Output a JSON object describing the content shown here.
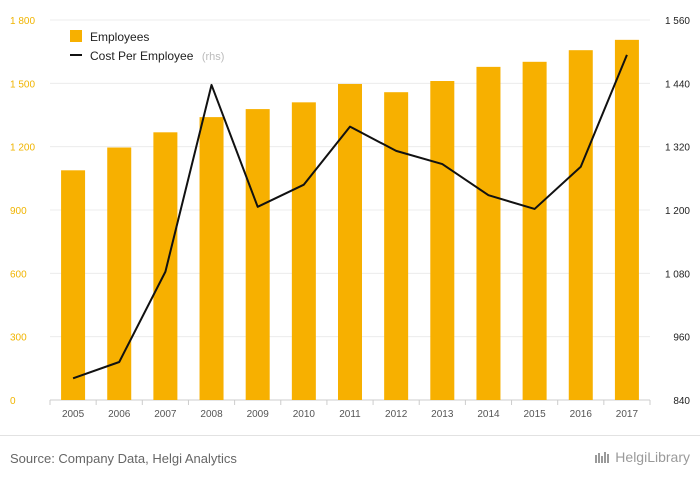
{
  "chart_data": {
    "type": "bar+line",
    "categories": [
      "2005",
      "2006",
      "2007",
      "2008",
      "2009",
      "2010",
      "2011",
      "2012",
      "2013",
      "2014",
      "2015",
      "2016",
      "2017"
    ],
    "series": [
      {
        "name": "Employees",
        "type": "bar",
        "axis": "left",
        "color": "#f7b000",
        "values": [
          1088,
          1196,
          1268,
          1340,
          1378,
          1410,
          1497,
          1458,
          1511,
          1578,
          1602,
          1657,
          1706
        ]
      },
      {
        "name": "Cost Per Employee",
        "note": "(rhs)",
        "type": "line",
        "axis": "right",
        "color": "#111111",
        "values": [
          881,
          912,
          1083,
          1437,
          1206,
          1248,
          1358,
          1312,
          1287,
          1228,
          1202,
          1282,
          1494
        ]
      }
    ],
    "left_axis": {
      "min": 0,
      "max": 1800,
      "ticks": [
        0,
        300,
        600,
        900,
        1200,
        1500,
        1800
      ],
      "tick_labels": [
        "0",
        "300",
        "600",
        "900",
        "1 200",
        "1 500",
        "1 800"
      ]
    },
    "right_axis": {
      "min": 840,
      "max": 1560,
      "ticks": [
        840,
        960,
        1080,
        1200,
        1320,
        1440,
        1560
      ],
      "tick_labels": [
        "840",
        "960",
        "1 080",
        "1 200",
        "1 320",
        "1 440",
        "1 560"
      ]
    },
    "legend_position": "top-left",
    "grid": "horizontal"
  },
  "legend": {
    "employees_label": "Employees",
    "cost_label": "Cost Per Employee",
    "cost_note": "(rhs)"
  },
  "footer": {
    "source": "Source: Company Data, Helgi Analytics",
    "brand": "HelgiLibrary"
  }
}
